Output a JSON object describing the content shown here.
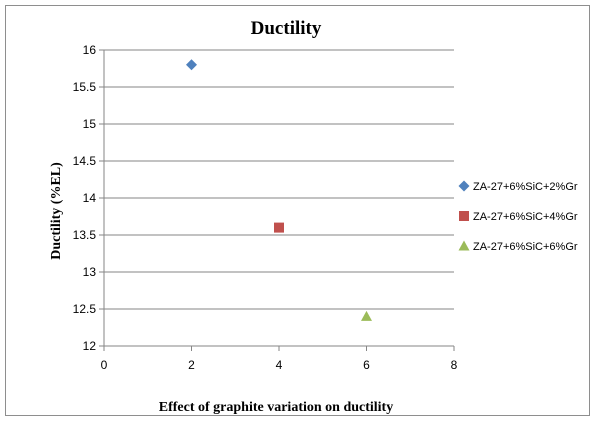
{
  "chart_data": {
    "type": "scatter",
    "title": "Ductility",
    "xlabel": "Effect of graphite variation on ductility",
    "ylabel": "Ductility   (%EL)",
    "xlim": [
      0,
      8
    ],
    "ylim": [
      12,
      16
    ],
    "xticks": [
      0,
      2,
      4,
      6,
      8
    ],
    "yticks": [
      12,
      12.5,
      13,
      13.5,
      14,
      14.5,
      15,
      15.5,
      16
    ],
    "grid": "horizontal",
    "legend_position": "right",
    "series": [
      {
        "name": "ZA-27+6%SiC+2%Gr",
        "marker": "diamond",
        "color": "#4f81bd",
        "points": [
          {
            "x": 2,
            "y": 15.8
          }
        ]
      },
      {
        "name": "ZA-27+6%SiC+4%Gr",
        "marker": "square",
        "color": "#c0504d",
        "points": [
          {
            "x": 4,
            "y": 13.6
          }
        ]
      },
      {
        "name": "ZA-27+6%SiC+6%Gr",
        "marker": "triangle",
        "color": "#9bbb59",
        "points": [
          {
            "x": 6,
            "y": 12.4
          }
        ]
      }
    ]
  }
}
